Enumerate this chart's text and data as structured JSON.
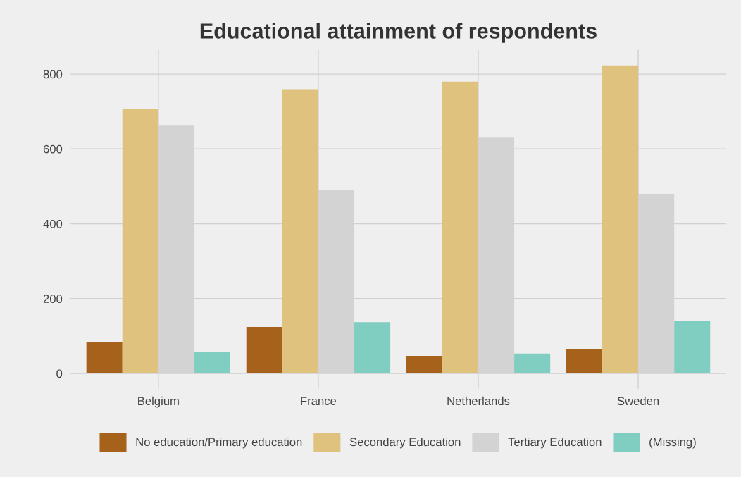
{
  "chart_data": {
    "type": "bar",
    "title": "Educational attainment of respondents",
    "categories": [
      "Belgium",
      "France",
      "Netherlands",
      "Sweden"
    ],
    "series": [
      {
        "name": "No education/Primary education",
        "color": "#a6611a",
        "values": [
          83,
          124,
          47,
          64
        ]
      },
      {
        "name": "Secondary Education",
        "color": "#dfc27d",
        "values": [
          706,
          758,
          780,
          823
        ]
      },
      {
        "name": "Tertiary Education",
        "color": "#d3d3d3",
        "values": [
          662,
          491,
          630,
          478
        ]
      },
      {
        "name": "(Missing)",
        "color": "#80cdc1",
        "values": [
          58,
          137,
          53,
          140
        ]
      }
    ],
    "ylim": [
      -41,
      864
    ],
    "yticks": [
      0,
      200,
      400,
      600,
      800
    ],
    "grid": true,
    "legend": "bottom"
  }
}
